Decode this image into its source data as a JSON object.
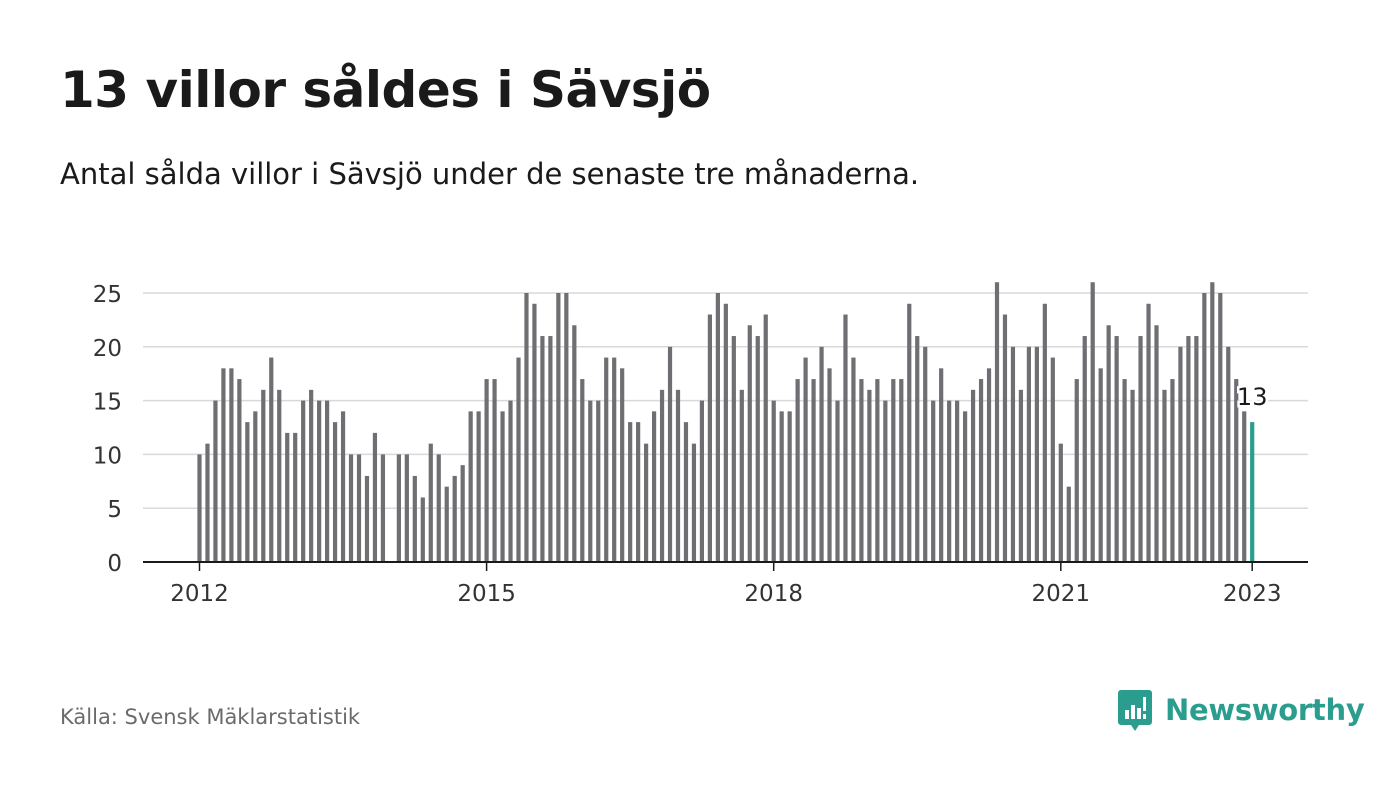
{
  "title": "13 villor såldes i Sävsjö",
  "subtitle": "Antal sålda villor i Sävsjö under de senaste tre månaderna.",
  "source": "Källa: Svensk Mäklarstatistik",
  "brand": {
    "name": "Newsworthy",
    "icon": "newsworthy-logo-icon",
    "color": "#2a9d8f"
  },
  "chart_data": {
    "type": "bar",
    "bar_color": "#6e6e73",
    "highlight_color": "#2a9d8f",
    "ylim": [
      0,
      26
    ],
    "yticks": [
      0,
      5,
      10,
      15,
      20,
      25
    ],
    "xticks": [
      2012,
      2015,
      2018,
      2021,
      2023
    ],
    "start": "2012-01",
    "values": [
      10,
      11,
      15,
      18,
      18,
      17,
      13,
      14,
      16,
      19,
      16,
      12,
      12,
      15,
      16,
      15,
      15,
      13,
      14,
      10,
      10,
      8,
      12,
      10,
      null,
      10,
      10,
      8,
      6,
      11,
      10,
      7,
      8,
      9,
      14,
      14,
      17,
      17,
      14,
      15,
      19,
      25,
      24,
      21,
      21,
      25,
      25,
      22,
      17,
      15,
      15,
      19,
      19,
      18,
      13,
      13,
      11,
      14,
      16,
      20,
      16,
      13,
      11,
      15,
      23,
      25,
      24,
      21,
      16,
      22,
      21,
      23,
      15,
      14,
      14,
      17,
      19,
      17,
      20,
      18,
      15,
      23,
      19,
      17,
      16,
      17,
      15,
      17,
      17,
      24,
      21,
      20,
      15,
      18,
      15,
      15,
      14,
      16,
      17,
      18,
      26,
      23,
      20,
      16,
      20,
      20,
      24,
      19,
      11,
      7,
      17,
      21,
      26,
      18,
      22,
      21,
      17,
      16,
      21,
      24,
      22,
      16,
      17,
      20,
      21,
      21,
      25,
      26,
      25,
      20,
      17,
      14,
      13
    ],
    "annotation": "13"
  }
}
